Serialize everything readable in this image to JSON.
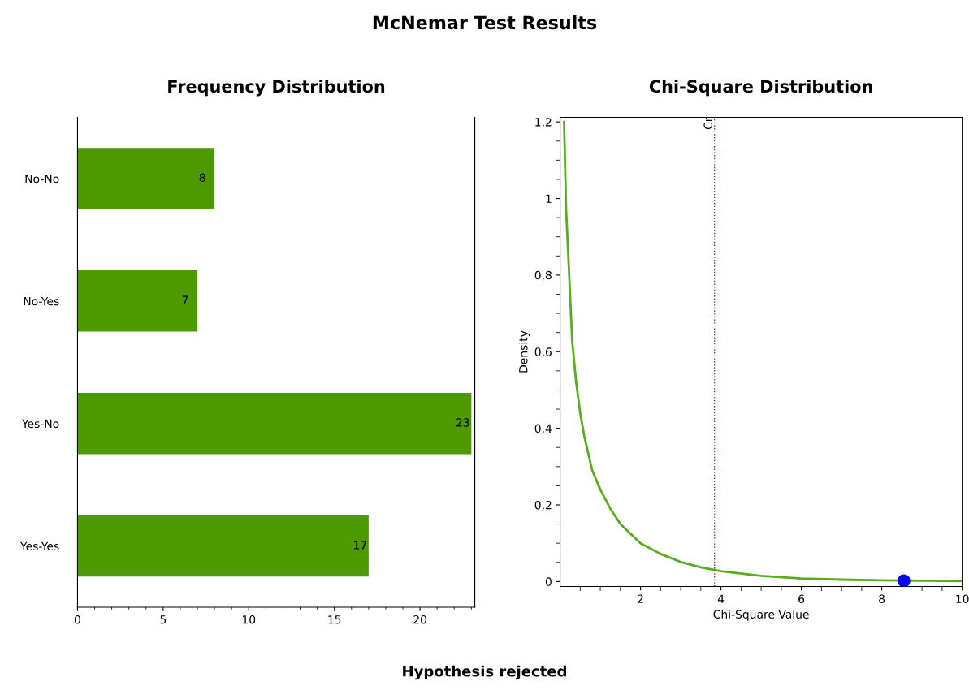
{
  "chart_data": [
    {
      "type": "bar",
      "orientation": "horizontal",
      "title": "Frequency Distribution",
      "annotations": [
        "McNemar Test Results",
        "Hypothesis rejected"
      ],
      "categories": [
        "No-No",
        "No-Yes",
        "Yes-No",
        "Yes-Yes"
      ],
      "values": [
        8,
        7,
        23,
        17
      ],
      "color": "#4c9900",
      "data_labels": true,
      "xlim": [
        0,
        23.2
      ],
      "xticks": [
        0,
        5,
        10,
        15,
        20
      ],
      "grid": false,
      "legend": false
    },
    {
      "type": "line",
      "title": "Chi-Square Distribution",
      "xlabel": "Chi-Square Value",
      "ylabel": "Density",
      "series": [
        {
          "type": "line",
          "color": "#5aab1e",
          "x": [
            0.1,
            0.15,
            0.2,
            0.3,
            0.4,
            0.5,
            0.6,
            0.8,
            1,
            1.25,
            1.5,
            2,
            2.5,
            3,
            3.5,
            4,
            5,
            6,
            7,
            8,
            9,
            10
          ],
          "values": [
            1.2,
            0.97,
            0.86,
            0.63,
            0.52,
            0.44,
            0.38,
            0.29,
            0.24,
            0.19,
            0.15,
            0.1,
            0.072,
            0.051,
            0.037,
            0.027,
            0.015,
            0.008,
            0.005,
            0.003,
            0.002,
            0.001
          ]
        },
        {
          "type": "scatter",
          "color": "#0000ff",
          "x": [
            8.55
          ],
          "values": [
            0.002
          ],
          "marker": "circle"
        }
      ],
      "ref_lines": [
        {
          "axis": "x",
          "value": 3.84,
          "label": "Cr",
          "color": "#ff0000",
          "line_style": "dotted"
        }
      ],
      "xlim": [
        0,
        10
      ],
      "xticks": [
        2,
        4,
        6,
        8,
        10
      ],
      "ylim": [
        -0.013,
        1.212
      ],
      "yticks": [
        {
          "value": 0,
          "label": "0"
        },
        {
          "value": 0.2,
          "label": "0,2"
        },
        {
          "value": 0.4,
          "label": "0,4"
        },
        {
          "value": 0.6,
          "label": "0,6"
        },
        {
          "value": 0.8,
          "label": "0,8"
        },
        {
          "value": 1,
          "label": "1"
        },
        {
          "value": 1.2,
          "label": "1,2"
        }
      ],
      "grid": false,
      "legend": false,
      "marker": "none",
      "line_style": "solid"
    }
  ]
}
